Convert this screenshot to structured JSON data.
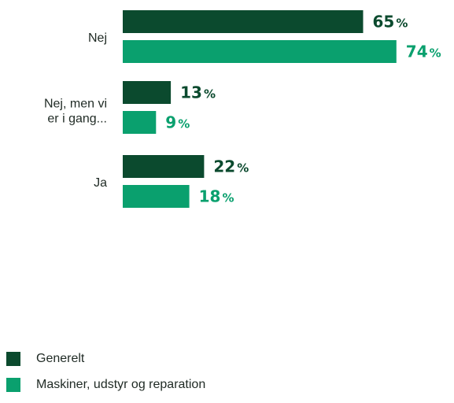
{
  "chart_data": {
    "type": "bar",
    "orientation": "horizontal",
    "categories": [
      "Nej",
      "Nej, men vi er i gang...",
      "Ja"
    ],
    "category_lines": [
      [
        "Nej"
      ],
      [
        "Nej, men vi",
        "er i gang..."
      ],
      [
        "Ja"
      ]
    ],
    "series": [
      {
        "name": "Generelt",
        "values": [
          65,
          13,
          22
        ],
        "color": "#0b4a2e"
      },
      {
        "name": "Maskiner, udstyr og reparation",
        "values": [
          74,
          9,
          18
        ],
        "color": "#0aa06e"
      }
    ],
    "value_suffix": "%",
    "xlim": [
      0,
      100
    ],
    "grid": false,
    "legend_position": "bottom-left"
  }
}
